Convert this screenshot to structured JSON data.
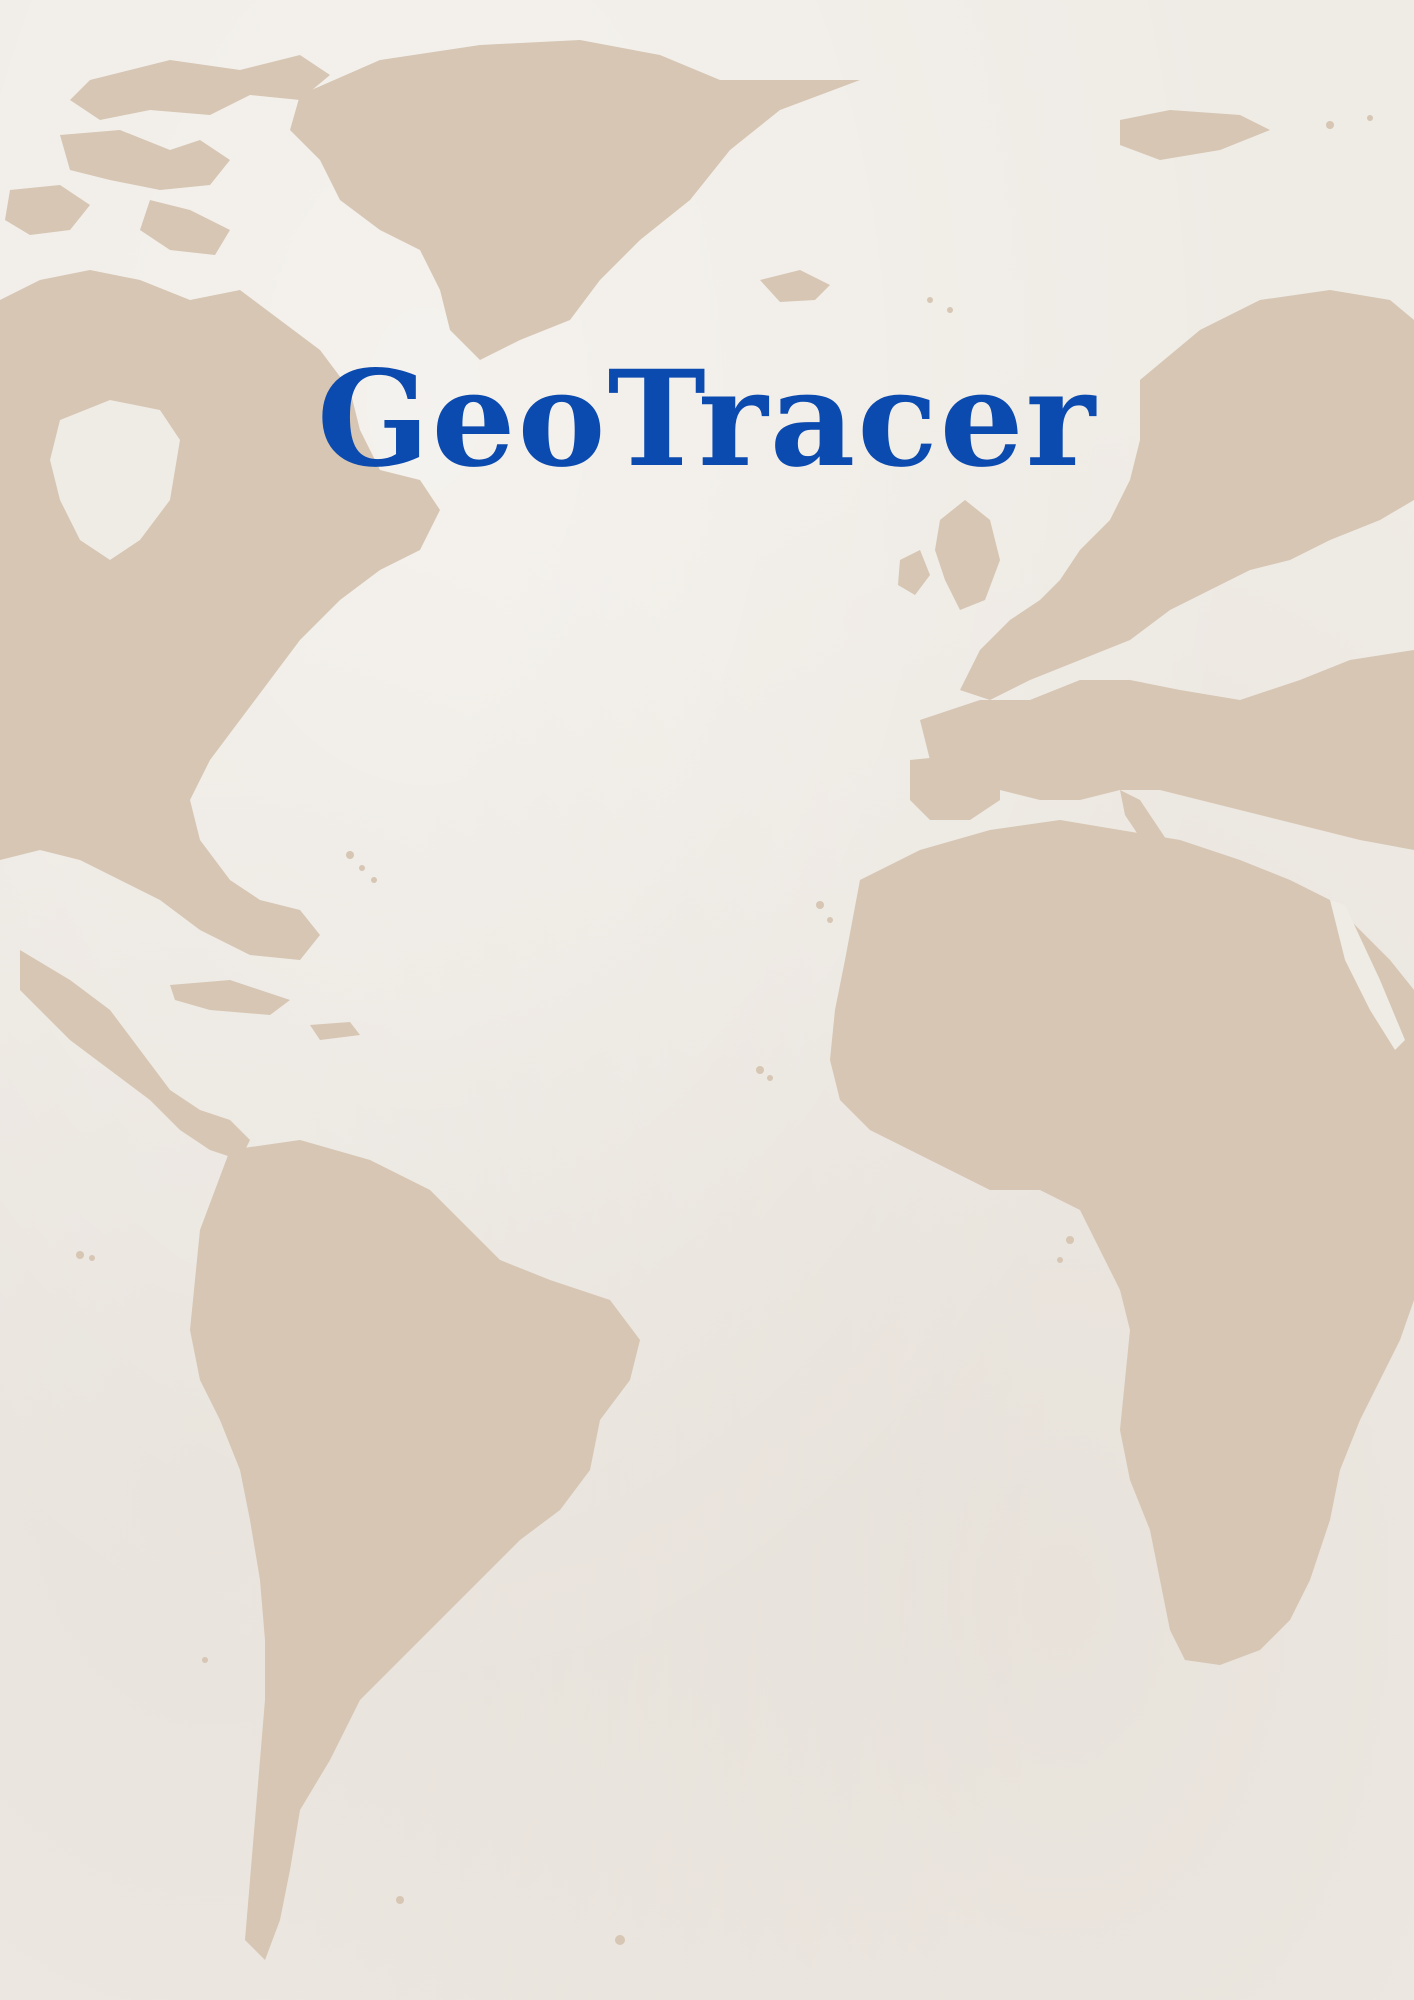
{
  "poster": {
    "title": "GeoTracer",
    "title_color": "#0b4aae",
    "background_color": "#efebe5",
    "land_color": "#d6c6b3",
    "background_image": "world-map-icon"
  }
}
